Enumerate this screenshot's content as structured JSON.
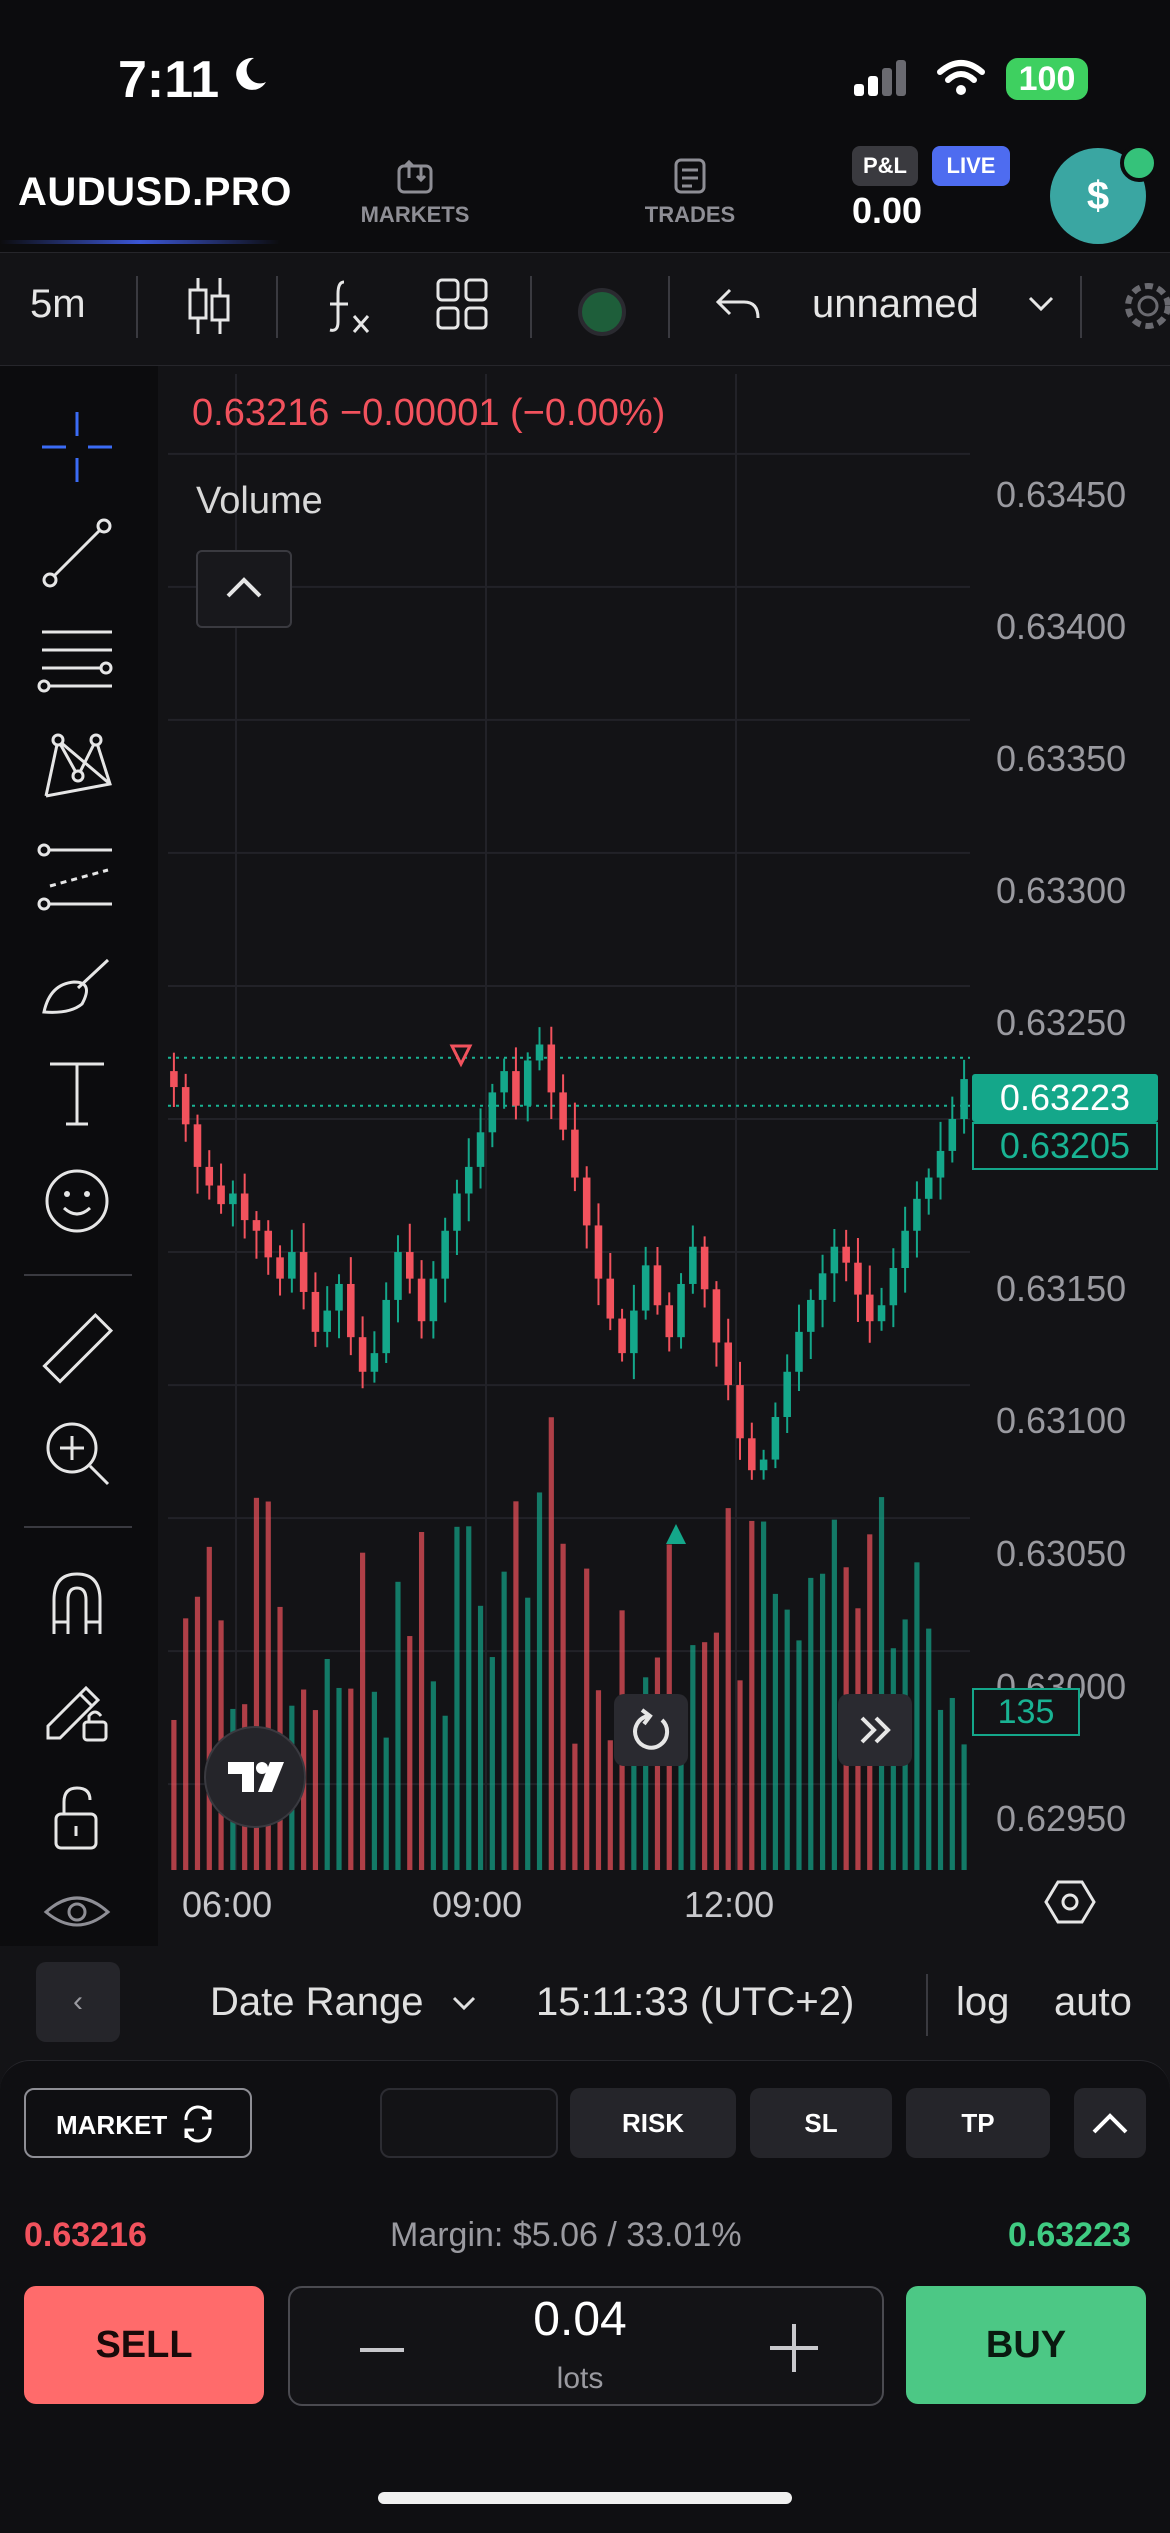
{
  "status_bar": {
    "time": "7:11",
    "battery": "100"
  },
  "header": {
    "symbol": "AUDUSD.PRO",
    "nav": [
      {
        "label": "MARKETS",
        "icon": "markets-icon"
      },
      {
        "label": "TRADES",
        "icon": "trades-icon"
      }
    ],
    "pl_label": "P&L",
    "live_label": "LIVE",
    "pl_value": "0.00",
    "account_icon": "$"
  },
  "toolbar": {
    "interval": "5m",
    "layout_name": "unnamed"
  },
  "chart": {
    "ohlc_text": "0.63216  −0.00001 (−0.00%)",
    "volume_label": "Volume",
    "price_axis": [
      "0.63450",
      "0.63400",
      "0.63350",
      "0.63300",
      "0.63250",
      "0.63150",
      "0.63100",
      "0.63050",
      "0.63000",
      "0.62950"
    ],
    "time_axis": [
      "06:00",
      "09:00",
      "12:00"
    ],
    "last_buy": "0.63223",
    "last_sell": "0.63205",
    "volume_value": "135",
    "colors": {
      "up": "#14a78a",
      "down": "#f2525d",
      "grid": "#222228"
    }
  },
  "chart_data": {
    "type": "candlestick",
    "ylim": [
      0.6292,
      0.6348
    ],
    "x_ticks": [
      "06:00",
      "09:00",
      "12:00"
    ],
    "close": [
      0.63212,
      0.63198,
      0.63182,
      0.63175,
      0.63168,
      0.63172,
      0.63162,
      0.63158,
      0.63148,
      0.6314,
      0.6315,
      0.63135,
      0.6312,
      0.63128,
      0.63138,
      0.63118,
      0.63105,
      0.63112,
      0.63132,
      0.6315,
      0.6314,
      0.63124,
      0.6314,
      0.63158,
      0.63172,
      0.63182,
      0.63195,
      0.6321,
      0.63218,
      0.63205,
      0.63222,
      0.63228,
      0.6321,
      0.63196,
      0.63178,
      0.6316,
      0.6314,
      0.63125,
      0.63112,
      0.63128,
      0.63145,
      0.6313,
      0.63118,
      0.63138,
      0.63152,
      0.63136,
      0.63116,
      0.631,
      0.6308,
      0.63068,
      0.63072,
      0.63088,
      0.63105,
      0.6312,
      0.63132,
      0.63142,
      0.63152,
      0.63146,
      0.63134,
      0.63124,
      0.6313,
      0.63144,
      0.63158,
      0.6317,
      0.63178,
      0.63188,
      0.632,
      0.63215
    ],
    "volume_label": "Volume"
  },
  "range_bar": {
    "back": "‹",
    "date_range": "Date Range",
    "clock": "15:11:33 (UTC+2)",
    "log": "log",
    "auto": "auto"
  },
  "order": {
    "market_label": "MARKET",
    "risk_label": "RISK",
    "sl_label": "SL",
    "tp_label": "TP",
    "sell_price": "0.63216",
    "margin_text": "Margin: $5.06 / 33.01%",
    "buy_price": "0.63223",
    "sell_label": "SELL",
    "buy_label": "BUY",
    "lots_value": "0.04",
    "lots_unit": "lots"
  }
}
